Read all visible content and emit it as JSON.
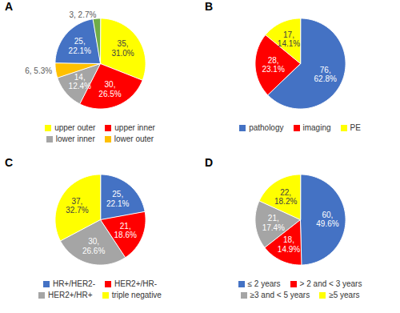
{
  "chart_data": [
    {
      "type": "pie",
      "title": "A",
      "categories": [
        "upper outer",
        "upper inner",
        "lower inner",
        "lower outer",
        null,
        null
      ],
      "values": [
        35,
        30,
        14,
        6,
        25,
        3
      ],
      "value_labels": [
        "35,\n31.0%",
        "30,\n26.5%",
        "14,\n12.4%",
        "6, 5.3%",
        "25,\n22.1%",
        "3, 2.7%"
      ],
      "colors": [
        "#ffff00",
        "#ff0000",
        "#a5a5a5",
        "#ffc000",
        "#4472c4",
        "#70ad47"
      ],
      "data_labels": true
    },
    {
      "type": "pie",
      "title": "B",
      "categories": [
        "pathology",
        "imaging",
        "PE"
      ],
      "values": [
        76,
        28,
        17
      ],
      "value_labels": [
        "76,\n62.8%",
        "28,\n23.1%",
        "17,\n14.1%"
      ],
      "colors": [
        "#4472c4",
        "#ff0000",
        "#ffff00"
      ],
      "data_labels": true
    },
    {
      "type": "pie",
      "title": "C",
      "categories": [
        "HR+/HER2-",
        "HER2+/HR-",
        "HER2+/HR+",
        "triple negative"
      ],
      "values": [
        25,
        21,
        30,
        37
      ],
      "value_labels": [
        "25,\n22.1%",
        "21,\n18.6%",
        "30,\n26.6%",
        "37,\n32.7%"
      ],
      "colors": [
        "#4472c4",
        "#ff0000",
        "#a5a5a5",
        "#ffff00"
      ],
      "data_labels": true
    },
    {
      "type": "pie",
      "title": "D",
      "categories": [
        "≤ 2 years",
        "> 2 and < 3 years",
        "≥3 and < 5 years",
        "≥5 years"
      ],
      "values": [
        60,
        18,
        21,
        22
      ],
      "value_labels": [
        "60,\n49.6%",
        "18,\n14.9%",
        "21,\n17.4%",
        "22,\n18.2%"
      ],
      "colors": [
        "#4472c4",
        "#ff0000",
        "#a5a5a5",
        "#ffff00"
      ],
      "data_labels": true
    }
  ]
}
